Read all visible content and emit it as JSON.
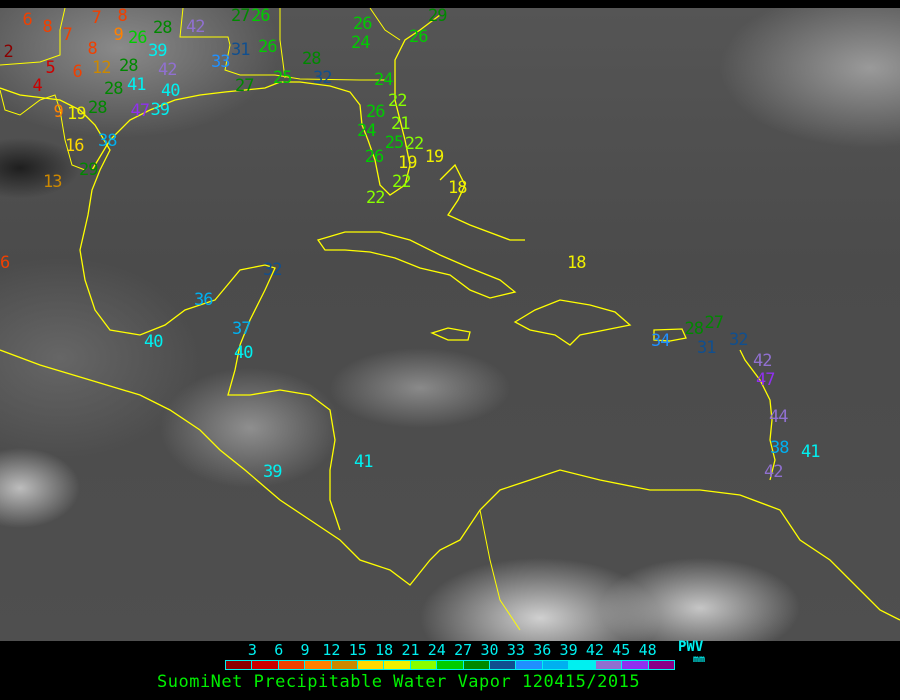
{
  "map": {
    "coastline_color": "#ffff00",
    "stations": [
      {
        "v": "6"
      },
      {
        "v": "8"
      },
      {
        "v": "7"
      },
      {
        "v": "7"
      },
      {
        "v": "8"
      },
      {
        "v": "9"
      },
      {
        "v": "2"
      },
      {
        "v": "5"
      },
      {
        "v": "6"
      },
      {
        "v": "8"
      },
      {
        "v": "12"
      },
      {
        "v": "28"
      },
      {
        "v": "4"
      },
      {
        "v": "28"
      },
      {
        "v": "9"
      },
      {
        "v": "19"
      },
      {
        "v": "28"
      },
      {
        "v": "41"
      },
      {
        "v": "40"
      },
      {
        "v": "39"
      },
      {
        "v": "47"
      },
      {
        "v": "42"
      },
      {
        "v": "39"
      },
      {
        "v": "26"
      },
      {
        "v": "28"
      },
      {
        "v": "42"
      },
      {
        "v": "16"
      },
      {
        "v": "38"
      },
      {
        "v": "29"
      },
      {
        "v": "13"
      },
      {
        "v": "6"
      },
      {
        "v": "26"
      },
      {
        "v": "27"
      },
      {
        "v": "31"
      },
      {
        "v": "26"
      },
      {
        "v": "33"
      },
      {
        "v": "28"
      },
      {
        "v": "26"
      },
      {
        "v": "24"
      },
      {
        "v": "26"
      },
      {
        "v": "29"
      },
      {
        "v": "24"
      },
      {
        "v": "32"
      },
      {
        "v": "25"
      },
      {
        "v": "27"
      },
      {
        "v": "22"
      },
      {
        "v": "24"
      },
      {
        "v": "21"
      },
      {
        "v": "26"
      },
      {
        "v": "25"
      },
      {
        "v": "22"
      },
      {
        "v": "19"
      },
      {
        "v": "19"
      },
      {
        "v": "26"
      },
      {
        "v": "22"
      },
      {
        "v": "22"
      },
      {
        "v": "18"
      },
      {
        "v": "18"
      },
      {
        "v": "34"
      },
      {
        "v": "28"
      },
      {
        "v": "27"
      },
      {
        "v": "31"
      },
      {
        "v": "32"
      },
      {
        "v": "42"
      },
      {
        "v": "47"
      },
      {
        "v": "44"
      },
      {
        "v": "38"
      },
      {
        "v": "41"
      },
      {
        "v": "42"
      },
      {
        "v": "41"
      },
      {
        "v": "39"
      },
      {
        "v": "36"
      },
      {
        "v": "32"
      },
      {
        "v": "40"
      },
      {
        "v": "37"
      },
      {
        "v": "40"
      }
    ]
  },
  "legend": {
    "ticks": [
      "3",
      "6",
      "9",
      "12",
      "15",
      "18",
      "21",
      "24",
      "27",
      "30",
      "33",
      "36",
      "39",
      "42",
      "45",
      "48"
    ],
    "colors": [
      "#8b0000",
      "#cc0000",
      "#f04000",
      "#ff8000",
      "#cc8800",
      "#ffd800",
      "#f0f000",
      "#88ff00",
      "#00cc00",
      "#008800",
      "#104f8f",
      "#2090ff",
      "#00b0f0",
      "#00f0f0",
      "#9070d0",
      "#9030f0",
      "#880088"
    ],
    "unit_title": "PWV",
    "unit": "mm"
  },
  "title": "SuomiNet Precipitable Water Vapor 120415/2015"
}
